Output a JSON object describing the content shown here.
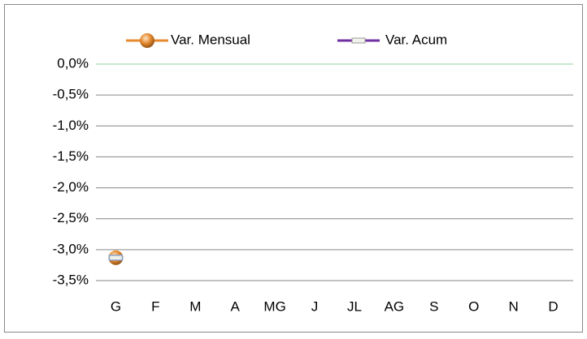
{
  "chart_data": {
    "type": "line",
    "categories": [
      "G",
      "F",
      "M",
      "A",
      "MG",
      "J",
      "JL",
      "AG",
      "S",
      "O",
      "N",
      "D"
    ],
    "series": [
      {
        "name": "Var. Mensual",
        "color": "#e58a2f",
        "values": [
          -3.13,
          null,
          null,
          null,
          null,
          null,
          null,
          null,
          null,
          null,
          null,
          null
        ]
      },
      {
        "name": "Var. Acum",
        "color": "#7030a0",
        "values": [
          -3.13,
          null,
          null,
          null,
          null,
          null,
          null,
          null,
          null,
          null,
          null,
          null
        ]
      }
    ],
    "ylim": [
      -3.5,
      0
    ],
    "yticks": [
      {
        "value": 0,
        "label": "0,0%"
      },
      {
        "value": -0.5,
        "label": "-0,5%"
      },
      {
        "value": -1,
        "label": "-1,0%"
      },
      {
        "value": -1.5,
        "label": "-1,5%"
      },
      {
        "value": -2,
        "label": "-2,0%"
      },
      {
        "value": -2.5,
        "label": "-2,5%"
      },
      {
        "value": -3,
        "label": "-3,0%"
      },
      {
        "value": -3.5,
        "label": "-3,5%"
      }
    ],
    "grid": true,
    "legend": "top"
  }
}
